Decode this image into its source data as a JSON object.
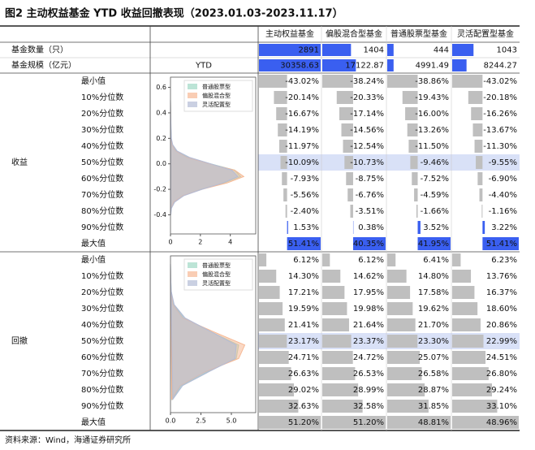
{
  "title": "图2 主动权益基金 YTD 收益回撤表现（2023.01.03-2023.11.17）",
  "columns": [
    "主动权益基金",
    "偏股混合型基金",
    "普通股票型基金",
    "灵活配置型基金"
  ],
  "count_row": {
    "label": "基金数量（只）",
    "values": [
      2891,
      1404,
      444,
      1043
    ]
  },
  "scale_row": {
    "label": "基金规模（亿元）",
    "note": "YTD",
    "values": [
      30358.63,
      17122.87,
      4991.49,
      8244.27
    ]
  },
  "sections": [
    {
      "name": "收益",
      "row_labels": [
        "最小值",
        "10%分位数",
        "20%分位数",
        "30%分位数",
        "40%分位数",
        "50%分位数",
        "60%分位数",
        "70%分位数",
        "80%分位数",
        "90%分位数",
        "最大值"
      ],
      "values": [
        [
          -43.02,
          -38.24,
          -38.86,
          -43.02
        ],
        [
          -20.14,
          -20.33,
          -19.43,
          -20.18
        ],
        [
          -16.67,
          -17.14,
          -16.0,
          -16.26
        ],
        [
          -14.19,
          -14.56,
          -13.26,
          -13.67
        ],
        [
          -11.97,
          -12.54,
          -11.5,
          -11.3
        ],
        [
          -10.09,
          -10.73,
          -9.46,
          -9.55
        ],
        [
          -7.93,
          -8.75,
          -7.52,
          -6.9
        ],
        [
          -5.56,
          -6.76,
          -4.59,
          -4.4
        ],
        [
          -2.4,
          -3.51,
          -1.66,
          -1.16
        ],
        [
          1.53,
          0.38,
          3.52,
          3.22
        ],
        [
          51.41,
          40.35,
          41.95,
          51.41
        ]
      ],
      "value_labels": [
        [
          "-43.02%",
          "-38.24%",
          "-38.86%",
          "-43.02%"
        ],
        [
          "-20.14%",
          "-20.33%",
          "-19.43%",
          "-20.18%"
        ],
        [
          "-16.67%",
          "-17.14%",
          "-16.00%",
          "-16.26%"
        ],
        [
          "-14.19%",
          "-14.56%",
          "-13.26%",
          "-13.67%"
        ],
        [
          "-11.97%",
          "-12.54%",
          "-11.50%",
          "-11.30%"
        ],
        [
          "-10.09%",
          "-10.73%",
          "-9.46%",
          "-9.55%"
        ],
        [
          "-7.93%",
          "-8.75%",
          "-7.52%",
          "-6.90%"
        ],
        [
          "-5.56%",
          "-6.76%",
          "-4.59%",
          "-4.40%"
        ],
        [
          "-2.40%",
          "-3.51%",
          "-1.66%",
          "-1.16%"
        ],
        [
          "1.53%",
          "0.38%",
          "3.52%",
          "3.22%"
        ],
        [
          "51.41%",
          "40.35%",
          "41.95%",
          "51.41%"
        ]
      ],
      "chart": {
        "type": "density",
        "legend": "upper right",
        "y": [
          -0.4,
          -0.35,
          -0.3,
          -0.25,
          -0.2,
          -0.15,
          -0.1,
          -0.05,
          0,
          0.05,
          0.1,
          0.15,
          0.2,
          0.3,
          0.4,
          0.5
        ],
        "series": [
          {
            "name": "普通股票型",
            "color": "#9fd8c4",
            "values": [
              0.01,
              0.05,
              0.25,
              0.85,
              2.0,
              3.6,
              4.7,
              4.3,
              2.7,
              1.2,
              0.4,
              0.12,
              0.05,
              0.02,
              0.01,
              0
            ]
          },
          {
            "name": "偏股混合型",
            "color": "#f6b894",
            "values": [
              0.01,
              0.04,
              0.2,
              0.8,
              2.1,
              3.8,
              4.9,
              4.3,
              2.6,
              1.1,
              0.35,
              0.1,
              0.04,
              0.02,
              0.01,
              0
            ]
          },
          {
            "name": "灵活配置型",
            "color": "#b4bcd6",
            "values": [
              0.02,
              0.06,
              0.28,
              0.9,
              2.1,
              3.5,
              4.5,
              4.1,
              2.7,
              1.3,
              0.45,
              0.15,
              0.06,
              0.03,
              0.01,
              0
            ]
          }
        ],
        "xlim": [
          0,
          5.7
        ],
        "xticks": [
          0,
          2,
          4
        ],
        "ylim": [
          -0.55,
          0.68
        ],
        "yticks": [
          0.6,
          0.4,
          0.2,
          {
            "value": 0,
            "label": "0.0"
          },
          -0.2,
          -0.4
        ]
      }
    },
    {
      "name": "回撤",
      "row_labels": [
        "最小值",
        "10%分位数",
        "20%分位数",
        "30%分位数",
        "40%分位数",
        "50%分位数",
        "60%分位数",
        "70%分位数",
        "80%分位数",
        "90%分位数",
        "最大值"
      ],
      "values": [
        [
          6.12,
          6.12,
          6.41,
          6.23
        ],
        [
          14.3,
          14.62,
          14.8,
          13.76
        ],
        [
          17.21,
          17.95,
          17.58,
          16.37
        ],
        [
          19.59,
          19.98,
          19.62,
          18.6
        ],
        [
          21.41,
          21.64,
          21.7,
          20.86
        ],
        [
          23.17,
          23.37,
          23.3,
          22.99
        ],
        [
          24.71,
          24.72,
          25.07,
          24.51
        ],
        [
          26.63,
          26.53,
          26.58,
          26.8
        ],
        [
          29.02,
          28.99,
          28.87,
          29.24
        ],
        [
          32.63,
          32.58,
          31.85,
          33.1
        ],
        [
          51.2,
          51.2,
          48.81,
          48.96
        ]
      ],
      "value_labels": [
        [
          "6.12%",
          "6.12%",
          "6.41%",
          "6.23%"
        ],
        [
          "14.30%",
          "14.62%",
          "14.80%",
          "13.76%"
        ],
        [
          "17.21%",
          "17.95%",
          "17.58%",
          "16.37%"
        ],
        [
          "19.59%",
          "19.98%",
          "19.62%",
          "18.60%"
        ],
        [
          "21.41%",
          "21.64%",
          "21.70%",
          "20.86%"
        ],
        [
          "23.17%",
          "23.37%",
          "23.30%",
          "22.99%"
        ],
        [
          "24.71%",
          "24.72%",
          "25.07%",
          "24.51%"
        ],
        [
          "26.63%",
          "26.53%",
          "26.58%",
          "26.80%"
        ],
        [
          "29.02%",
          "28.99%",
          "28.87%",
          "29.24%"
        ],
        [
          "32.63%",
          "32.58%",
          "31.85%",
          "33.10%"
        ],
        [
          "51.20%",
          "51.20%",
          "48.81%",
          "48.96%"
        ]
      ],
      "chart": {
        "type": "density",
        "legend": "upper right",
        "y": [
          0.05,
          0.1,
          0.15,
          0.2,
          0.25,
          0.3,
          0.35,
          0.4,
          0.45,
          0.5,
          0.55
        ],
        "series": [
          {
            "name": "普通股票型",
            "color": "#9fd8c4",
            "values": [
              0.15,
              0.9,
              3.0,
              5.4,
              5.6,
              3.3,
              1.1,
              0.25,
              0.05,
              0.02,
              0
            ]
          },
          {
            "name": "偏股混合型",
            "color": "#f6b894",
            "values": [
              0.1,
              0.8,
              2.8,
              5.6,
              6.1,
              3.5,
              1.0,
              0.2,
              0.04,
              0.01,
              0
            ]
          },
          {
            "name": "灵活配置型",
            "color": "#b4bcd6",
            "values": [
              0.2,
              1.0,
              3.1,
              5.3,
              5.4,
              3.3,
              1.2,
              0.3,
              0.06,
              0.02,
              0
            ]
          }
        ],
        "xlim": [
          0,
          7
        ],
        "xticks": [
          {
            "value": 0,
            "label": "0.0"
          },
          {
            "value": 2.5,
            "label": "2.5"
          },
          {
            "value": 5,
            "label": "5.0"
          }
        ],
        "ylim": [
          0,
          0.58
        ]
      }
    }
  ],
  "source": "资料来源：Wind，海通证券研究所"
}
